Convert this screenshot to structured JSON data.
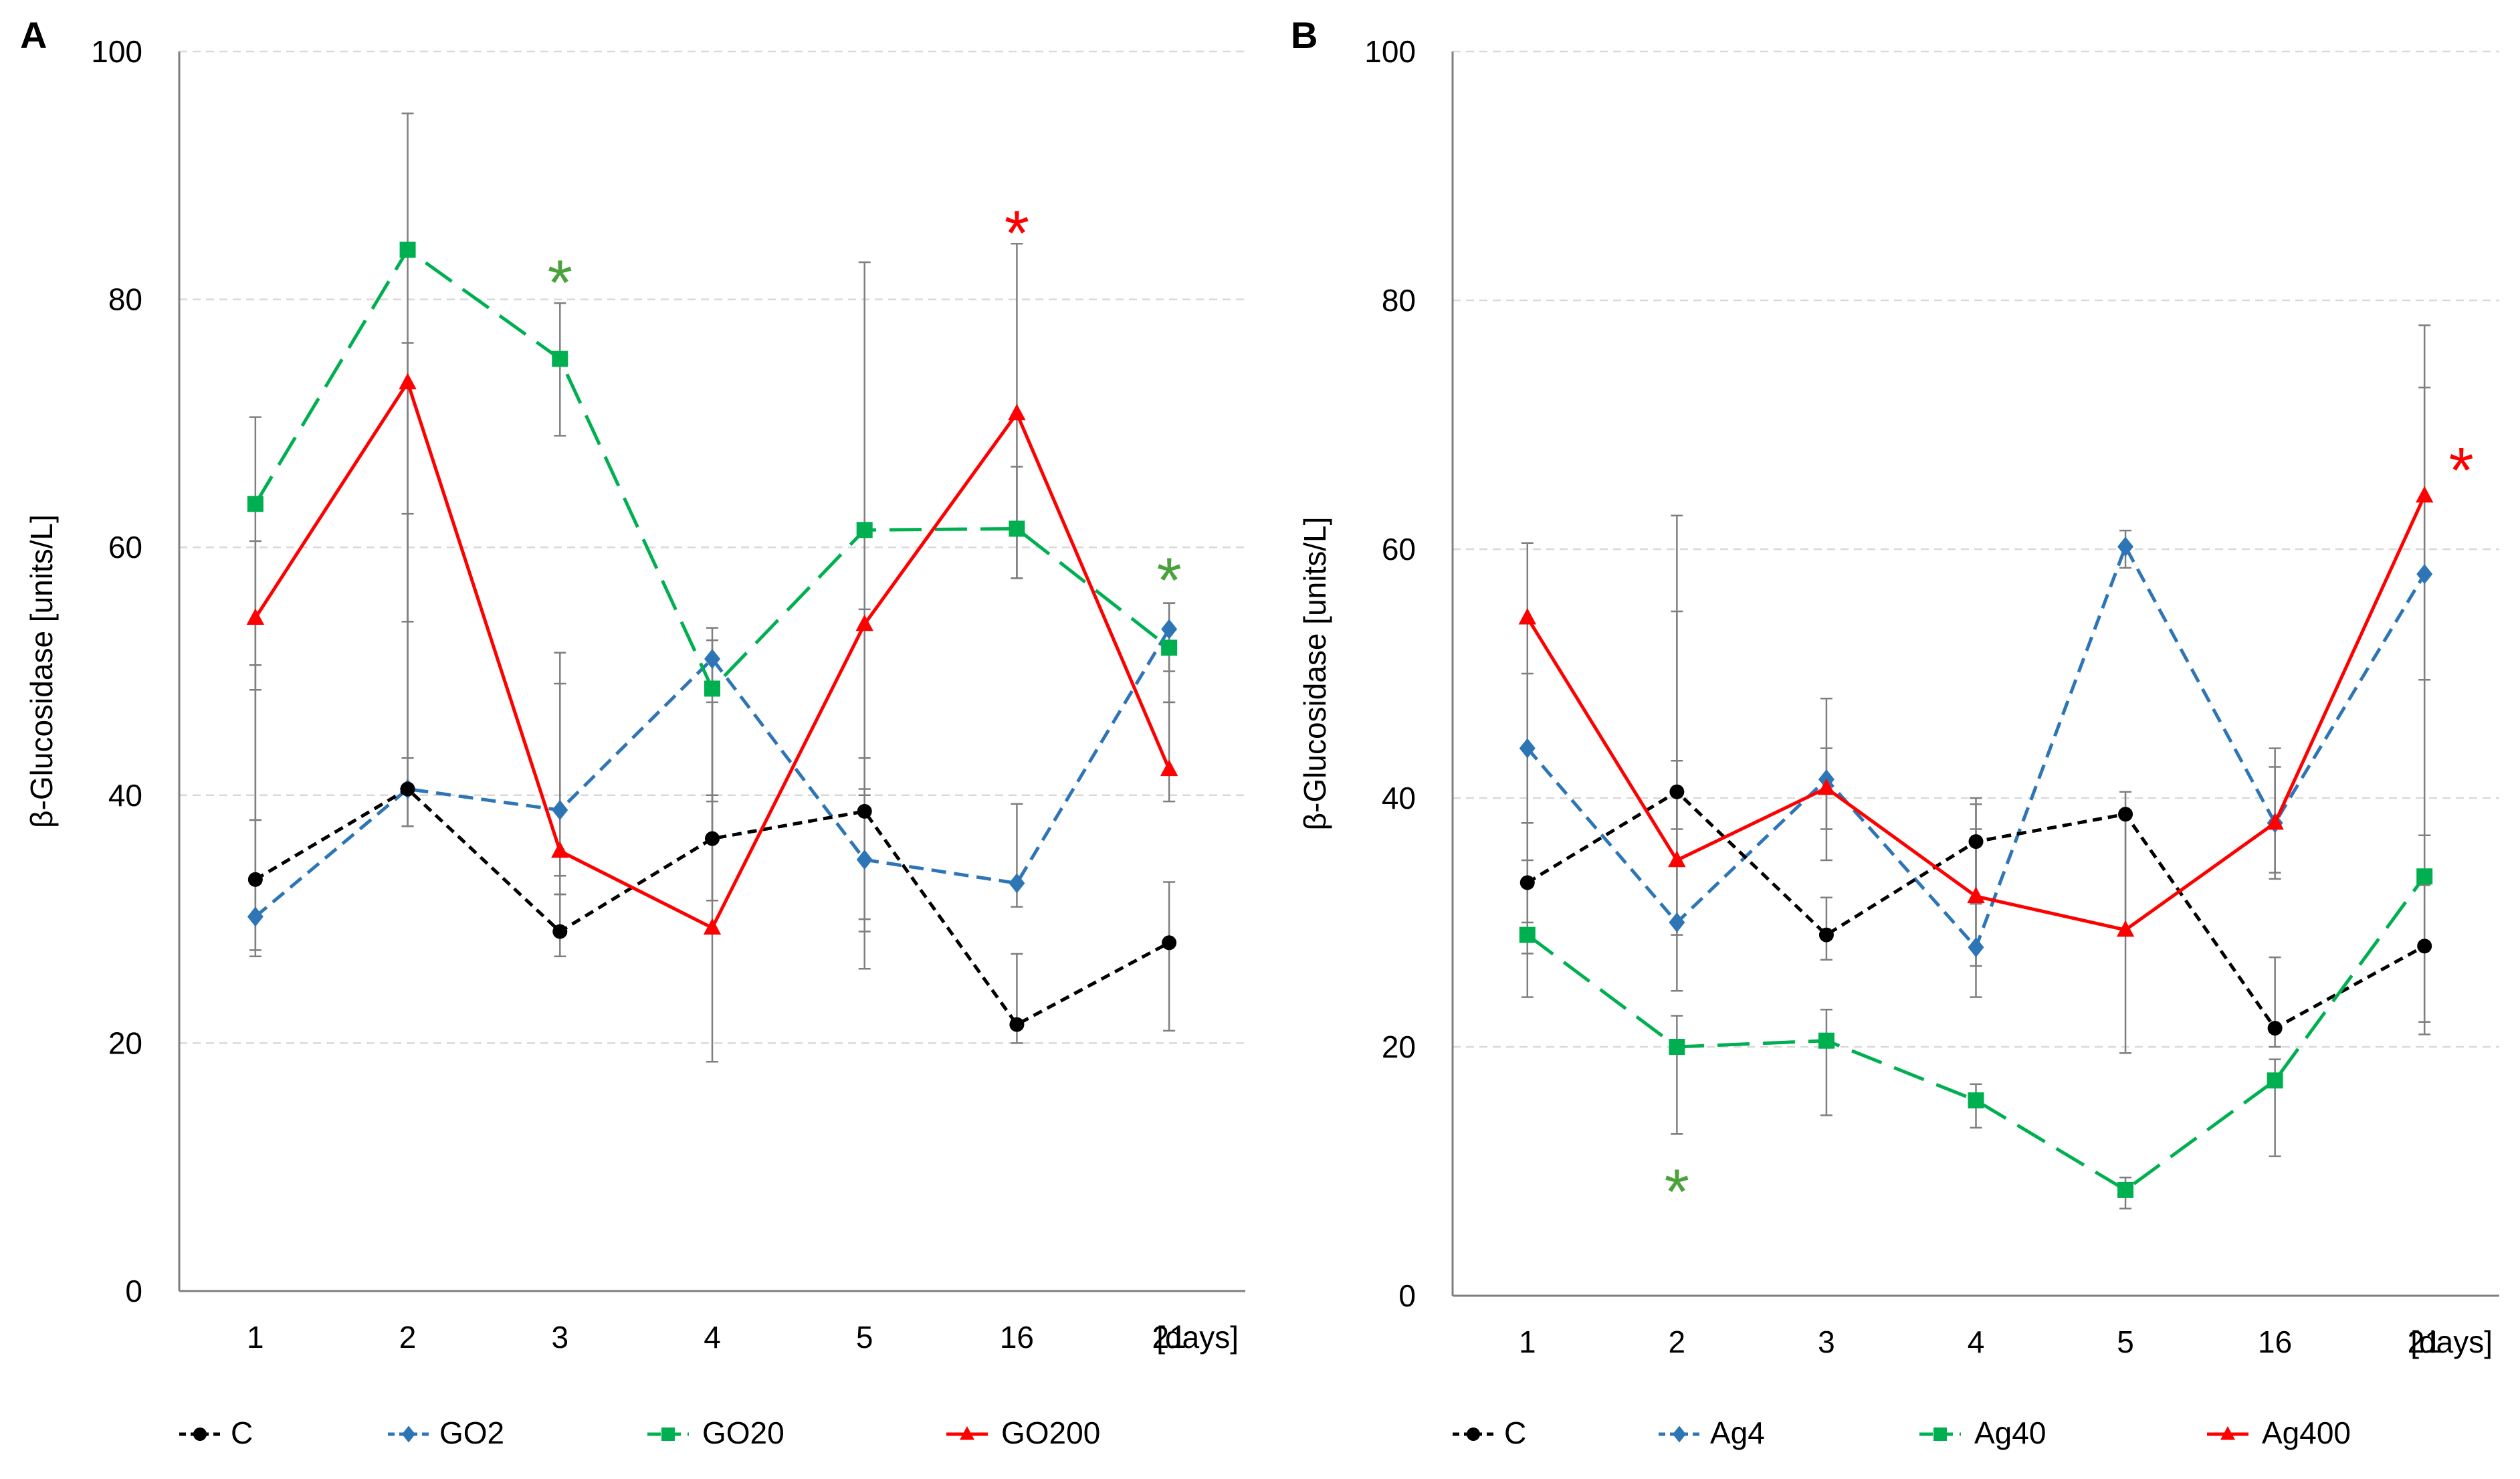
{
  "chart_data": [
    {
      "panel_label": "A",
      "type": "line",
      "ylabel": "β-Glucosidase   [units/L]",
      "x_unit": "[days]",
      "categories": [
        "1",
        "2",
        "3",
        "4",
        "5",
        "16",
        "21"
      ],
      "ylim": [
        0,
        100
      ],
      "yticks": [
        "0",
        "20",
        "40",
        "60",
        "80",
        "100"
      ],
      "grid": true,
      "legend_position": "bottom",
      "series": [
        {
          "name": "C",
          "color": "#000000",
          "style": "dotted",
          "marker": "circle",
          "values": [
            33.2,
            40.5,
            29.0,
            36.5,
            38.7,
            21.5,
            28.1
          ],
          "error_low": [
            27.5,
            37.5,
            27.0,
            31.5,
            29.0,
            20.0,
            21.0
          ],
          "error_high": [
            38.0,
            43.0,
            32.0,
            40.0,
            40.5,
            27.2,
            33.0
          ]
        },
        {
          "name": "GO2",
          "color": "#2E75B6",
          "style": "dashed",
          "marker": "diamond",
          "values": [
            30.2,
            40.5,
            38.8,
            51.0,
            34.8,
            32.9,
            53.4
          ],
          "error_low": [
            27.0,
            37.5,
            32.0,
            49.0,
            26.0,
            31.0,
            50.0
          ],
          "error_high": [
            50.5,
            62.7,
            51.5,
            53.5,
            43.0,
            39.3,
            55.5
          ]
        },
        {
          "name": "GO20",
          "color": "#00B050",
          "style": "longdash",
          "marker": "square",
          "values": [
            63.5,
            84.0,
            75.2,
            48.6,
            61.4,
            61.5,
            51.9
          ],
          "error_low": [
            48.5,
            54.0,
            69.0,
            39.5,
            30.0,
            57.5,
            47.5
          ],
          "error_high": [
            70.5,
            95.0,
            79.7,
            52.5,
            83.0,
            66.5,
            55.5
          ]
        },
        {
          "name": "GO200",
          "color": "#FF0000",
          "style": "solid",
          "marker": "triangle",
          "values": [
            54.3,
            73.3,
            35.5,
            29.3,
            53.8,
            70.8,
            42.1
          ],
          "error_low": [
            38.0,
            43.0,
            33.5,
            18.5,
            40.0,
            57.5,
            39.5
          ],
          "error_high": [
            60.5,
            76.5,
            49.0,
            47.5,
            55.0,
            84.5,
            47.5
          ]
        }
      ],
      "annotations": [
        {
          "text": "*",
          "category": "3",
          "y": 82,
          "color": "#4BA13A"
        },
        {
          "text": "*",
          "category": "16",
          "y": 86,
          "color": "#FF0000"
        },
        {
          "text": "*",
          "category": "21",
          "y": 58,
          "color": "#4BA13A"
        }
      ]
    },
    {
      "panel_label": "B",
      "type": "line",
      "ylabel": "β-Glucosidase   [units/L]",
      "x_unit": "[days]",
      "categories": [
        "1",
        "2",
        "3",
        "4",
        "5",
        "16",
        "21"
      ],
      "ylim": [
        0,
        100
      ],
      "yticks": [
        "0",
        "20",
        "40",
        "60",
        "80",
        "100"
      ],
      "grid": true,
      "legend_position": "bottom",
      "series": [
        {
          "name": "C",
          "color": "#000000",
          "style": "dotted",
          "marker": "circle",
          "values": [
            33.2,
            40.5,
            29.0,
            36.5,
            38.7,
            21.5,
            28.1
          ],
          "error_low": [
            27.5,
            37.5,
            27.0,
            31.5,
            29.0,
            20.0,
            21.0
          ],
          "error_high": [
            38.0,
            43.0,
            32.0,
            40.0,
            40.5,
            27.2,
            33.0
          ]
        },
        {
          "name": "Ag4",
          "color": "#2E75B6",
          "style": "dashed",
          "marker": "diamond",
          "values": [
            44.0,
            30.0,
            41.5,
            28.0,
            60.2,
            38.0,
            58.0
          ],
          "error_low": [
            38.0,
            24.5,
            35.0,
            24.0,
            58.5,
            34.0,
            37.0
          ],
          "error_high": [
            50.0,
            55.0,
            48.0,
            39.5,
            61.5,
            44.0,
            73.0
          ]
        },
        {
          "name": "Ag40",
          "color": "#00B050",
          "style": "longdash",
          "marker": "square",
          "values": [
            29.0,
            20.0,
            20.5,
            15.7,
            8.5,
            17.3,
            33.7
          ],
          "error_low": [
            24.0,
            13.0,
            14.5,
            13.5,
            7.0,
            11.2,
            22.0
          ],
          "error_high": [
            35.0,
            22.5,
            23.0,
            17.0,
            9.5,
            19.0,
            37.0
          ]
        },
        {
          "name": "Ag400",
          "color": "#FF0000",
          "style": "solid",
          "marker": "triangle",
          "values": [
            54.5,
            35.0,
            40.8,
            32.1,
            29.4,
            38.0,
            64.3
          ],
          "error_low": [
            30.0,
            29.0,
            37.5,
            26.5,
            19.5,
            33.5,
            49.5
          ],
          "error_high": [
            60.5,
            62.7,
            44.0,
            37.5,
            39.0,
            42.5,
            78.0
          ]
        }
      ],
      "annotations": [
        {
          "text": "*",
          "category": "2",
          "y": 9,
          "color": "#4BA13A"
        },
        {
          "text": "*",
          "category": "21",
          "y": 67,
          "color": "#FF0000"
        }
      ]
    }
  ]
}
